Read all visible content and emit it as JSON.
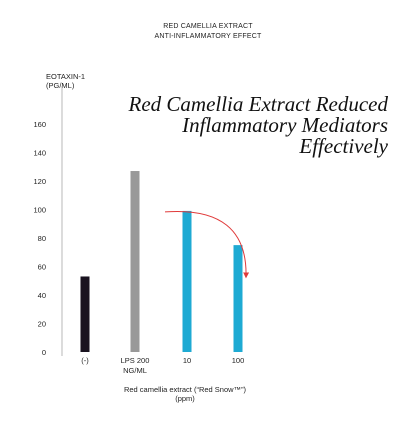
{
  "header": {
    "line1": "RED CAMELLIA EXTRACT",
    "line2": "ANTI-INFLAMMATORY EFFECT"
  },
  "headline": {
    "line1": "Red Camellia Extract Reduced",
    "line2": "Inflammatory Mediators",
    "line3": "Effectively"
  },
  "colors": {
    "negative_control": "#1a1320",
    "lps": "#999999",
    "treatment": "#1eaad3",
    "arrow": "#e03a3a",
    "axis": "#888888"
  },
  "chart_data": {
    "type": "bar",
    "ylabel_lines": [
      "EOTAXIN-1",
      "(PG/ML)"
    ],
    "xlabel_lines": [
      "Red camellia extract (“Red Snow™”)",
      "(ppm)"
    ],
    "ylim": [
      0,
      160
    ],
    "yticks": [
      0,
      20,
      40,
      60,
      80,
      100,
      120,
      140,
      160
    ],
    "categories": [
      {
        "label": "(-)",
        "label2": ""
      },
      {
        "label": "LPS 200",
        "label2": "NG/ML"
      },
      {
        "label": "10",
        "label2": ""
      },
      {
        "label": "100",
        "label2": ""
      }
    ],
    "values": [
      53,
      127,
      99,
      75
    ],
    "bar_color_keys": [
      "negative_control",
      "lps",
      "treatment",
      "treatment"
    ],
    "annotation": {
      "type": "arrow",
      "from_category": 2,
      "to_category": 3
    },
    "grid": false
  }
}
